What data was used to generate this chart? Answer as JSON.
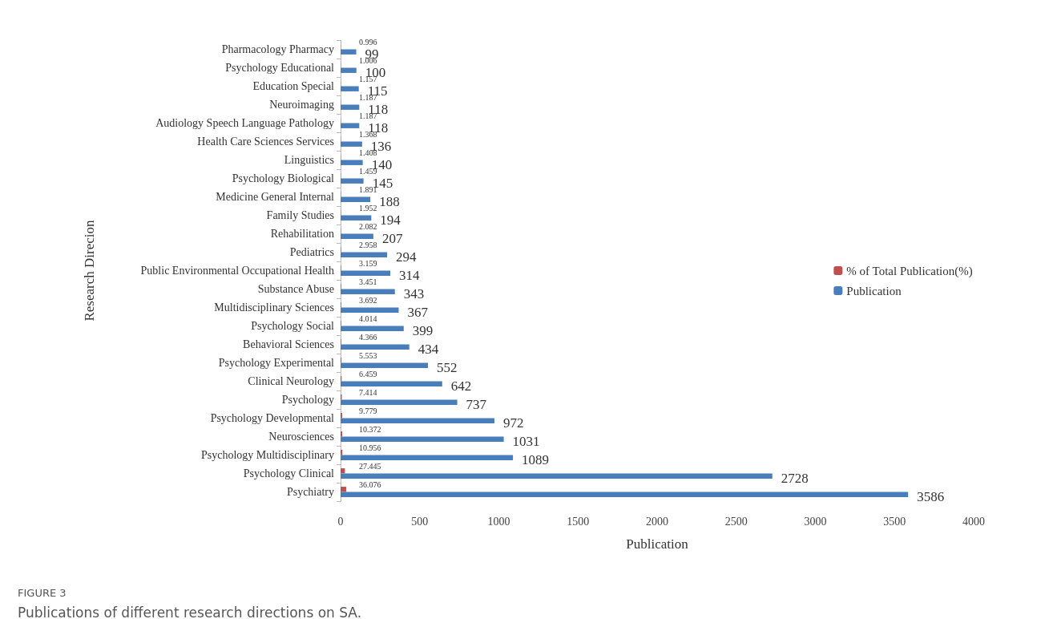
{
  "chart_data": {
    "type": "bar",
    "orientation": "horizontal",
    "xlabel": "Publication",
    "ylabel": "Research Direcion",
    "categories": [
      "Pharmacology Pharmacy",
      "Psychology Educational",
      "Education Special",
      "Neuroimaging",
      "Audiology Speech Language Pathology",
      "Health Care Sciences Services",
      "Linguistics",
      "Psychology Biological",
      "Medicine General Internal",
      "Family Studies",
      "Rehabilitation",
      "Pediatrics",
      "Public Environmental Occupational Health",
      "Substance Abuse",
      "Multidisciplinary Sciences",
      "Psychology Social",
      "Behavioral Sciences",
      "Psychology Experimental",
      "Clinical Neurology",
      "Psychology",
      "Psychology Developmental",
      "Neurosciences",
      "Psychology Multidisciplinary",
      "Psychology Clinical",
      "Psychiatry"
    ],
    "series": [
      {
        "name": "% of Total Publication(%)",
        "color": "#c0504d",
        "values": [
          0.996,
          1.006,
          1.157,
          1.187,
          1.187,
          1.368,
          1.408,
          1.459,
          1.891,
          1.952,
          2.082,
          2.958,
          3.159,
          3.451,
          3.692,
          4.014,
          4.366,
          5.553,
          6.459,
          7.414,
          9.779,
          10.372,
          10.956,
          27.445,
          36.076
        ]
      },
      {
        "name": "Publication",
        "color": "#4a7ebb",
        "values": [
          99,
          100,
          115,
          118,
          118,
          136,
          140,
          145,
          188,
          194,
          207,
          294,
          314,
          343,
          367,
          399,
          434,
          552,
          642,
          737,
          972,
          1031,
          1089,
          2728,
          3586
        ]
      }
    ],
    "xlim": [
      0,
      4000
    ],
    "xticks": [
      0,
      500,
      1000,
      1500,
      2000,
      2500,
      3000,
      3500,
      4000
    ],
    "data_labels": true,
    "legend": "right",
    "annotations": [
      "FIGURE 3",
      "Publications of different research directions on SA."
    ]
  }
}
